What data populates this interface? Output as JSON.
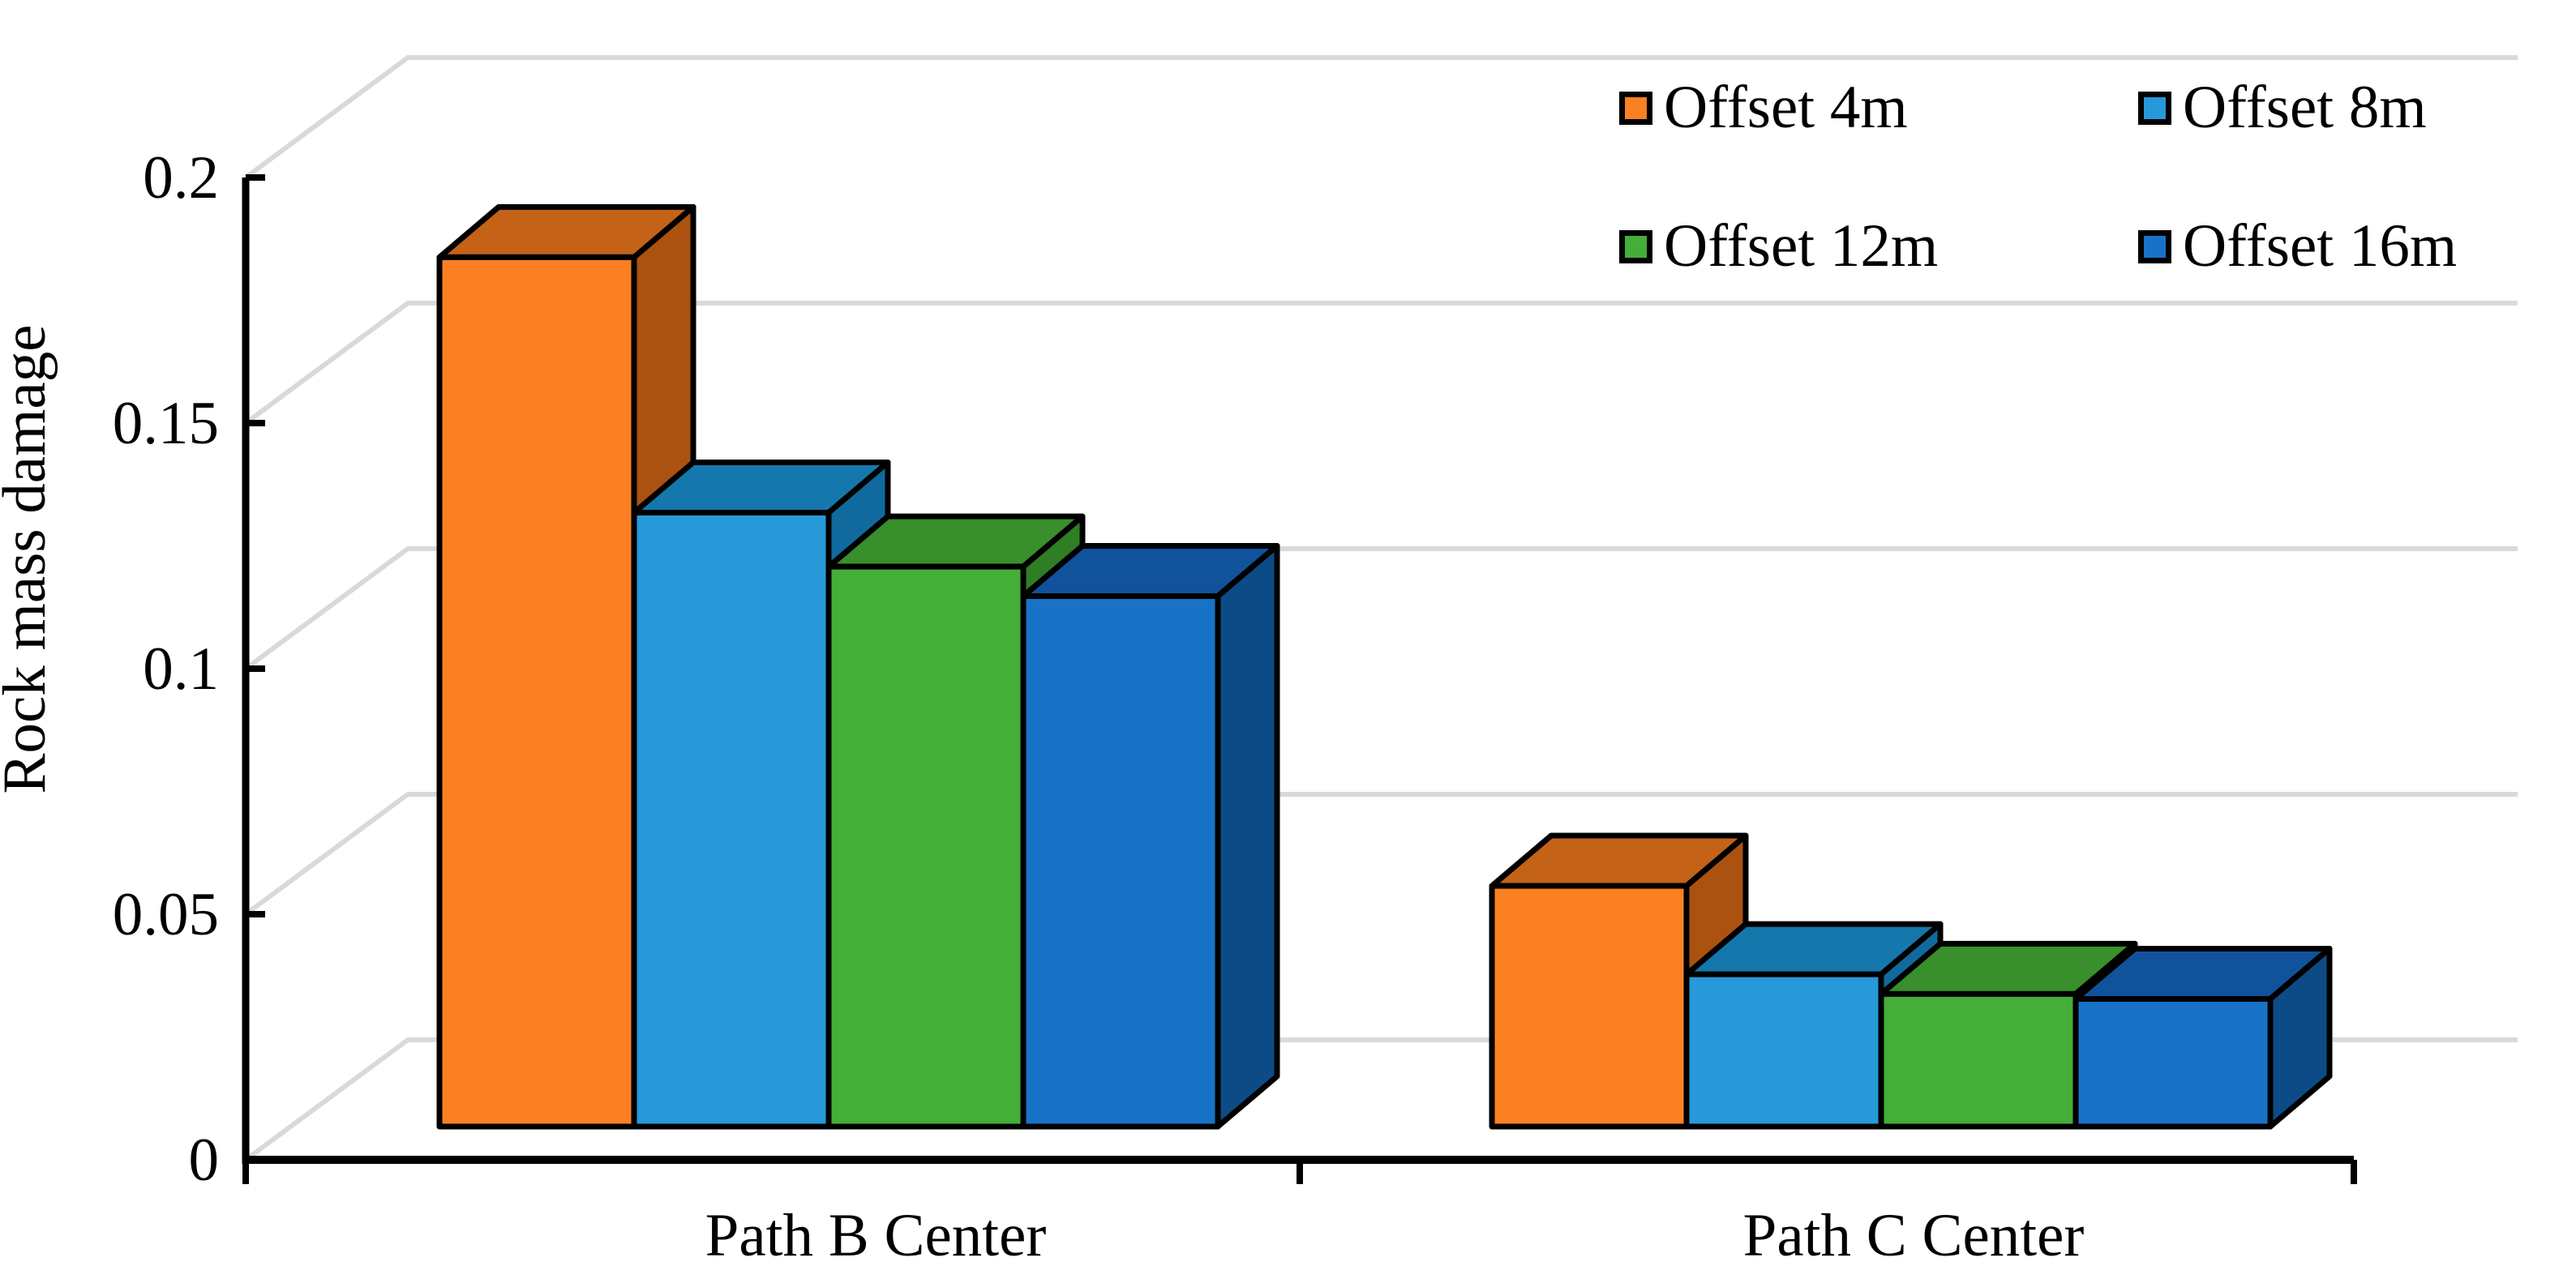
{
  "colors": {
    "background": "#FFFFFF",
    "gridline": "#D9D9D9",
    "axis": "#000000",
    "bar_outline": "#000000"
  },
  "chart_data": {
    "type": "bar",
    "projection": "3d-oblique",
    "title": "",
    "ylabel": "Rock mass damage",
    "xlabel": "",
    "ylim": [
      0,
      0.2
    ],
    "grid": true,
    "legend_position": "top-right",
    "categories": [
      "Path B Center",
      "Path C Center"
    ],
    "y_ticks": [
      {
        "label": "0.2",
        "value": 0.2
      },
      {
        "label": "0.15",
        "value": 0.15
      },
      {
        "label": "0.1",
        "value": 0.1
      },
      {
        "label": "0.05",
        "value": 0.05
      },
      {
        "label": "0",
        "value": 0
      }
    ],
    "series": [
      {
        "name": "Offset 4m",
        "values": [
          0.177,
          0.049
        ],
        "color": "#FB8024",
        "color_top": "#C46318",
        "color_side": "#AC5211"
      },
      {
        "name": "Offset 8m",
        "values": [
          0.125,
          0.031
        ],
        "color": "#2799D9",
        "color_top": "#1578AD",
        "color_side": "#116A9E"
      },
      {
        "name": "Offset 12m",
        "values": [
          0.114,
          0.027
        ],
        "color": "#44AE39",
        "color_top": "#388F2B",
        "color_side": "#2F7E24"
      },
      {
        "name": "Offset 16m",
        "values": [
          0.108,
          0.026
        ],
        "color": "#1873C8",
        "color_top": "#11529C",
        "color_side": "#0D4B86"
      }
    ]
  }
}
